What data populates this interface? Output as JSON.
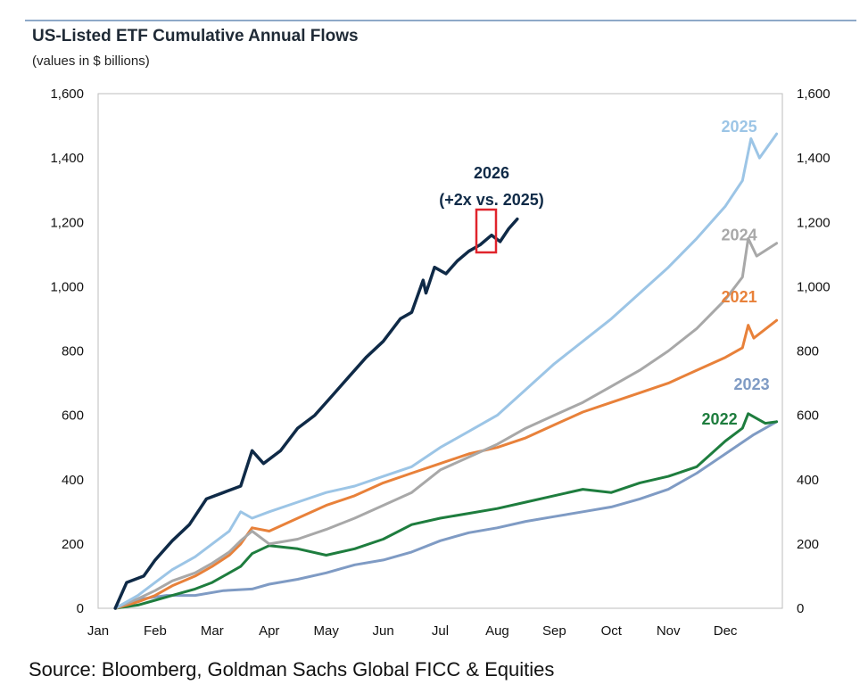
{
  "header": {
    "title": "US-Listed ETF Cumulative Annual Flows",
    "subtitle": "(values in $ billions)"
  },
  "footer": {
    "source": "Source: Bloomberg, Goldman Sachs Global FICC & Equities"
  },
  "chart_data": {
    "type": "line",
    "title": "US-Listed ETF Cumulative Annual Flows",
    "subtitle": "(values in $ billions)",
    "xlabel": "",
    "ylabel": "",
    "ylim": [
      0,
      1600
    ],
    "y_ticks": [
      0,
      200,
      400,
      600,
      800,
      1000,
      1200,
      1400,
      1600
    ],
    "y_tick_labels": [
      "0",
      "200",
      "400",
      "600",
      "800",
      "1,000",
      "1,200",
      "1,400",
      "1,600"
    ],
    "x_axis_months": [
      "Jan",
      "Feb",
      "Mar",
      "Apr",
      "May",
      "Jun",
      "Jul",
      "Aug",
      "Sep",
      "Oct",
      "Nov",
      "Dec"
    ],
    "x_unit": "months since Jan 1 (0 = Jan 1, 12 = Dec 31)",
    "grid": false,
    "legend": "inline labels at line ends",
    "annotation": {
      "lines": [
        "2026",
        "(+2x vs. 2025)"
      ],
      "highlight_box_color": "#e0242c"
    },
    "series": [
      {
        "name": "2023",
        "color": "#7f9bc4",
        "x": [
          0.3,
          0.8,
          1.2,
          1.7,
          2.2,
          2.7,
          3.0,
          3.5,
          4.0,
          4.5,
          5.0,
          5.5,
          6.0,
          6.5,
          7.0,
          7.5,
          8.0,
          8.5,
          9.0,
          9.5,
          10.0,
          10.5,
          11.0,
          11.5,
          11.9
        ],
        "y": [
          0,
          30,
          40,
          40,
          55,
          60,
          75,
          90,
          110,
          135,
          150,
          175,
          210,
          235,
          250,
          270,
          285,
          300,
          315,
          340,
          370,
          420,
          480,
          540,
          580
        ]
      },
      {
        "name": "2022",
        "color": "#1e7d3e",
        "x": [
          0.3,
          0.7,
          1.0,
          1.3,
          1.7,
          2.0,
          2.3,
          2.5,
          2.7,
          3.0,
          3.5,
          4.0,
          4.5,
          5.0,
          5.5,
          6.0,
          6.5,
          7.0,
          7.5,
          8.0,
          8.5,
          9.0,
          9.5,
          10.0,
          10.5,
          11.0,
          11.3,
          11.4,
          11.7,
          11.9
        ],
        "y": [
          0,
          10,
          25,
          40,
          60,
          80,
          110,
          130,
          170,
          195,
          185,
          165,
          185,
          215,
          260,
          280,
          295,
          310,
          330,
          350,
          370,
          360,
          390,
          410,
          440,
          520,
          560,
          605,
          575,
          580
        ]
      },
      {
        "name": "2021",
        "color": "#e8813a",
        "x": [
          0.3,
          0.7,
          1.0,
          1.3,
          1.7,
          2.0,
          2.3,
          2.5,
          2.7,
          3.0,
          3.5,
          4.0,
          4.5,
          5.0,
          5.5,
          6.0,
          6.5,
          7.0,
          7.5,
          8.0,
          8.5,
          9.0,
          9.5,
          10.0,
          10.5,
          11.0,
          11.3,
          11.4,
          11.5,
          11.9
        ],
        "y": [
          0,
          20,
          40,
          70,
          100,
          130,
          165,
          200,
          250,
          240,
          280,
          320,
          350,
          390,
          420,
          450,
          480,
          500,
          530,
          570,
          610,
          640,
          670,
          700,
          740,
          780,
          810,
          880,
          840,
          895
        ]
      },
      {
        "name": "2024",
        "color": "#a8a8a8",
        "x": [
          0.3,
          0.7,
          1.0,
          1.3,
          1.7,
          2.0,
          2.3,
          2.5,
          2.7,
          3.0,
          3.5,
          4.0,
          4.5,
          5.0,
          5.5,
          6.0,
          6.5,
          7.0,
          7.5,
          8.0,
          8.5,
          9.0,
          9.5,
          10.0,
          10.5,
          11.0,
          11.3,
          11.4,
          11.55,
          11.9
        ],
        "y": [
          0,
          30,
          55,
          85,
          110,
          140,
          175,
          210,
          240,
          200,
          215,
          245,
          280,
          320,
          360,
          430,
          470,
          510,
          560,
          600,
          640,
          690,
          740,
          800,
          870,
          960,
          1030,
          1150,
          1095,
          1135
        ]
      },
      {
        "name": "2025",
        "color": "#9cc5e6",
        "x": [
          0.3,
          0.7,
          1.0,
          1.3,
          1.7,
          2.0,
          2.3,
          2.5,
          2.7,
          3.0,
          3.5,
          4.0,
          4.5,
          5.0,
          5.5,
          6.0,
          6.5,
          7.0,
          7.5,
          8.0,
          8.5,
          9.0,
          9.5,
          10.0,
          10.5,
          11.0,
          11.3,
          11.45,
          11.6,
          11.9
        ],
        "y": [
          0,
          40,
          80,
          120,
          160,
          200,
          240,
          300,
          280,
          300,
          330,
          360,
          380,
          410,
          440,
          500,
          550,
          600,
          680,
          760,
          830,
          900,
          980,
          1060,
          1150,
          1250,
          1330,
          1460,
          1400,
          1475
        ]
      },
      {
        "name": "2026",
        "color": "#0f2a47",
        "x": [
          0.3,
          0.5,
          0.8,
          1.0,
          1.3,
          1.6,
          1.9,
          2.2,
          2.5,
          2.7,
          2.9,
          3.2,
          3.5,
          3.8,
          4.1,
          4.4,
          4.7,
          5.0,
          5.3,
          5.5,
          5.7,
          5.75,
          5.9,
          6.1,
          6.3,
          6.5,
          6.7,
          6.9,
          7.05,
          7.2,
          7.35
        ],
        "y": [
          0,
          80,
          100,
          150,
          210,
          260,
          340,
          360,
          380,
          490,
          450,
          490,
          560,
          600,
          660,
          720,
          780,
          830,
          900,
          920,
          1020,
          980,
          1060,
          1040,
          1080,
          1110,
          1130,
          1160,
          1140,
          1180,
          1210
        ]
      }
    ]
  }
}
